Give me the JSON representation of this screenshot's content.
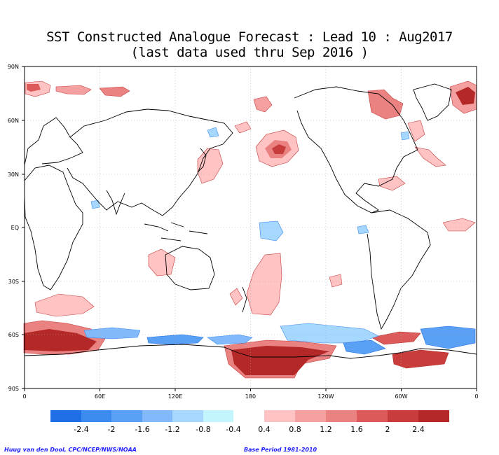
{
  "title_line1": "SST Constructed Analogue Forecast : Lead 10 : Aug2017",
  "title_line2": "(last data used thru Sep 2016 )",
  "lat_labels": [
    "90N",
    "60N",
    "30N",
    "EQ",
    "30S",
    "60S",
    "90S"
  ],
  "lon_labels": [
    "0",
    "60E",
    "120E",
    "180",
    "120W",
    "60W",
    "0"
  ],
  "colorbar": {
    "labels": [
      "-2.4",
      "-2",
      "-1.6",
      "-1.2",
      "-0.8",
      "-0.4",
      "0.4",
      "0.8",
      "1.2",
      "1.6",
      "2",
      "2.4"
    ],
    "neg_colors": [
      "#1e6ee6",
      "#3c8cf0",
      "#5aa0f5",
      "#82b9fa",
      "#a5d7ff",
      "#c3f5ff"
    ],
    "pos_colors": [
      "#ffc3c3",
      "#f5a0a0",
      "#eb8282",
      "#dc5a5a",
      "#c83c3c",
      "#b42828"
    ]
  },
  "footer_left": "Huug van den Dool, CPC/NCEP/NWS/NOAA",
  "footer_right": "Base Period 1981-2010"
}
